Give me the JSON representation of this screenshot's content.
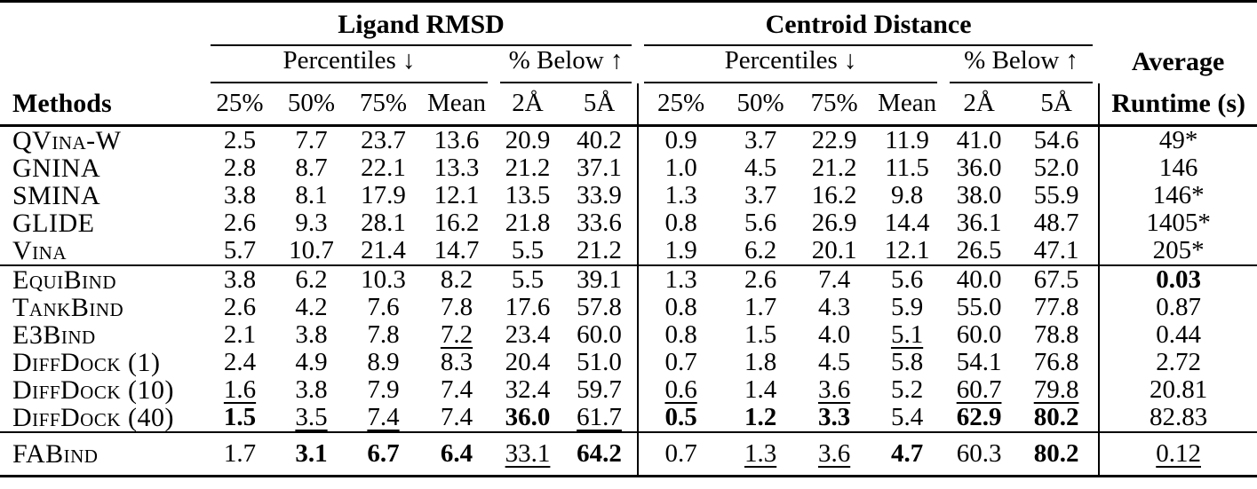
{
  "colors": {
    "text": "#000000",
    "background": "#ffffff",
    "rule": "#000000"
  },
  "header": {
    "methods": "Methods",
    "group_ligand": "Ligand RMSD",
    "group_centroid": "Centroid Distance",
    "percentiles": "Percentiles ↓",
    "below": "% Below ↑",
    "average": "Average",
    "runtime": "Runtime (s)",
    "cols": [
      "25%",
      "50%",
      "75%",
      "Mean",
      "2Å",
      "5Å"
    ]
  },
  "table": {
    "groups": [
      {
        "rows": [
          {
            "method": "QVina-W",
            "values": [
              {
                "v": "2.5",
                "s": "n"
              },
              {
                "v": "7.7",
                "s": "n"
              },
              {
                "v": "23.7",
                "s": "n"
              },
              {
                "v": "13.6",
                "s": "n"
              },
              {
                "v": "20.9",
                "s": "n"
              },
              {
                "v": "40.2",
                "s": "n"
              },
              {
                "v": "0.9",
                "s": "n"
              },
              {
                "v": "3.7",
                "s": "n"
              },
              {
                "v": "22.9",
                "s": "n"
              },
              {
                "v": "11.9",
                "s": "n"
              },
              {
                "v": "41.0",
                "s": "n"
              },
              {
                "v": "54.6",
                "s": "n"
              },
              {
                "v": "49*",
                "s": "n"
              }
            ]
          },
          {
            "method": "GNINA",
            "values": [
              {
                "v": "2.8",
                "s": "n"
              },
              {
                "v": "8.7",
                "s": "n"
              },
              {
                "v": "22.1",
                "s": "n"
              },
              {
                "v": "13.3",
                "s": "n"
              },
              {
                "v": "21.2",
                "s": "n"
              },
              {
                "v": "37.1",
                "s": "n"
              },
              {
                "v": "1.0",
                "s": "n"
              },
              {
                "v": "4.5",
                "s": "n"
              },
              {
                "v": "21.2",
                "s": "n"
              },
              {
                "v": "11.5",
                "s": "n"
              },
              {
                "v": "36.0",
                "s": "n"
              },
              {
                "v": "52.0",
                "s": "n"
              },
              {
                "v": "146",
                "s": "n"
              }
            ]
          },
          {
            "method": "SMINA",
            "values": [
              {
                "v": "3.8",
                "s": "n"
              },
              {
                "v": "8.1",
                "s": "n"
              },
              {
                "v": "17.9",
                "s": "n"
              },
              {
                "v": "12.1",
                "s": "n"
              },
              {
                "v": "13.5",
                "s": "n"
              },
              {
                "v": "33.9",
                "s": "n"
              },
              {
                "v": "1.3",
                "s": "n"
              },
              {
                "v": "3.7",
                "s": "n"
              },
              {
                "v": "16.2",
                "s": "n"
              },
              {
                "v": "9.8",
                "s": "n"
              },
              {
                "v": "38.0",
                "s": "n"
              },
              {
                "v": "55.9",
                "s": "n"
              },
              {
                "v": "146*",
                "s": "n"
              }
            ]
          },
          {
            "method": "GLIDE",
            "values": [
              {
                "v": "2.6",
                "s": "n"
              },
              {
                "v": "9.3",
                "s": "n"
              },
              {
                "v": "28.1",
                "s": "n"
              },
              {
                "v": "16.2",
                "s": "n"
              },
              {
                "v": "21.8",
                "s": "n"
              },
              {
                "v": "33.6",
                "s": "n"
              },
              {
                "v": "0.8",
                "s": "n"
              },
              {
                "v": "5.6",
                "s": "n"
              },
              {
                "v": "26.9",
                "s": "n"
              },
              {
                "v": "14.4",
                "s": "n"
              },
              {
                "v": "36.1",
                "s": "n"
              },
              {
                "v": "48.7",
                "s": "n"
              },
              {
                "v": "1405*",
                "s": "n"
              }
            ]
          },
          {
            "method": "Vina",
            "values": [
              {
                "v": "5.7",
                "s": "n"
              },
              {
                "v": "10.7",
                "s": "n"
              },
              {
                "v": "21.4",
                "s": "n"
              },
              {
                "v": "14.7",
                "s": "n"
              },
              {
                "v": "5.5",
                "s": "n"
              },
              {
                "v": "21.2",
                "s": "n"
              },
              {
                "v": "1.9",
                "s": "n"
              },
              {
                "v": "6.2",
                "s": "n"
              },
              {
                "v": "20.1",
                "s": "n"
              },
              {
                "v": "12.1",
                "s": "n"
              },
              {
                "v": "26.5",
                "s": "n"
              },
              {
                "v": "47.1",
                "s": "n"
              },
              {
                "v": "205*",
                "s": "n"
              }
            ]
          }
        ]
      },
      {
        "rows": [
          {
            "method": "EquiBind",
            "values": [
              {
                "v": "3.8",
                "s": "n"
              },
              {
                "v": "6.2",
                "s": "n"
              },
              {
                "v": "10.3",
                "s": "n"
              },
              {
                "v": "8.2",
                "s": "n"
              },
              {
                "v": "5.5",
                "s": "n"
              },
              {
                "v": "39.1",
                "s": "n"
              },
              {
                "v": "1.3",
                "s": "n"
              },
              {
                "v": "2.6",
                "s": "n"
              },
              {
                "v": "7.4",
                "s": "n"
              },
              {
                "v": "5.6",
                "s": "n"
              },
              {
                "v": "40.0",
                "s": "n"
              },
              {
                "v": "67.5",
                "s": "n"
              },
              {
                "v": "0.03",
                "s": "b"
              }
            ]
          },
          {
            "method": "TankBind",
            "values": [
              {
                "v": "2.6",
                "s": "n"
              },
              {
                "v": "4.2",
                "s": "n"
              },
              {
                "v": "7.6",
                "s": "n"
              },
              {
                "v": "7.8",
                "s": "n"
              },
              {
                "v": "17.6",
                "s": "n"
              },
              {
                "v": "57.8",
                "s": "n"
              },
              {
                "v": "0.8",
                "s": "n"
              },
              {
                "v": "1.7",
                "s": "n"
              },
              {
                "v": "4.3",
                "s": "n"
              },
              {
                "v": "5.9",
                "s": "n"
              },
              {
                "v": "55.0",
                "s": "n"
              },
              {
                "v": "77.8",
                "s": "n"
              },
              {
                "v": "0.87",
                "s": "n"
              }
            ]
          },
          {
            "method": "E3Bind",
            "values": [
              {
                "v": "2.1",
                "s": "n"
              },
              {
                "v": "3.8",
                "s": "n"
              },
              {
                "v": "7.8",
                "s": "n"
              },
              {
                "v": "7.2",
                "s": "u"
              },
              {
                "v": "23.4",
                "s": "n"
              },
              {
                "v": "60.0",
                "s": "n"
              },
              {
                "v": "0.8",
                "s": "n"
              },
              {
                "v": "1.5",
                "s": "n"
              },
              {
                "v": "4.0",
                "s": "n"
              },
              {
                "v": "5.1",
                "s": "u"
              },
              {
                "v": "60.0",
                "s": "n"
              },
              {
                "v": "78.8",
                "s": "n"
              },
              {
                "v": "0.44",
                "s": "n"
              }
            ]
          },
          {
            "method": "DiffDock (1)",
            "values": [
              {
                "v": "2.4",
                "s": "n"
              },
              {
                "v": "4.9",
                "s": "n"
              },
              {
                "v": "8.9",
                "s": "n"
              },
              {
                "v": "8.3",
                "s": "n"
              },
              {
                "v": "20.4",
                "s": "n"
              },
              {
                "v": "51.0",
                "s": "n"
              },
              {
                "v": "0.7",
                "s": "n"
              },
              {
                "v": "1.8",
                "s": "n"
              },
              {
                "v": "4.5",
                "s": "n"
              },
              {
                "v": "5.8",
                "s": "n"
              },
              {
                "v": "54.1",
                "s": "n"
              },
              {
                "v": "76.8",
                "s": "n"
              },
              {
                "v": "2.72",
                "s": "n"
              }
            ]
          },
          {
            "method": "DiffDock (10)",
            "values": [
              {
                "v": "1.6",
                "s": "u"
              },
              {
                "v": "3.8",
                "s": "n"
              },
              {
                "v": "7.9",
                "s": "n"
              },
              {
                "v": "7.4",
                "s": "n"
              },
              {
                "v": "32.4",
                "s": "n"
              },
              {
                "v": "59.7",
                "s": "n"
              },
              {
                "v": "0.6",
                "s": "u"
              },
              {
                "v": "1.4",
                "s": "n"
              },
              {
                "v": "3.6",
                "s": "u"
              },
              {
                "v": "5.2",
                "s": "n"
              },
              {
                "v": "60.7",
                "s": "u"
              },
              {
                "v": "79.8",
                "s": "u"
              },
              {
                "v": "20.81",
                "s": "n"
              }
            ]
          },
          {
            "method": "DiffDock (40)",
            "values": [
              {
                "v": "1.5",
                "s": "b"
              },
              {
                "v": "3.5",
                "s": "u"
              },
              {
                "v": "7.4",
                "s": "u"
              },
              {
                "v": "7.4",
                "s": "n"
              },
              {
                "v": "36.0",
                "s": "b"
              },
              {
                "v": "61.7",
                "s": "u"
              },
              {
                "v": "0.5",
                "s": "b"
              },
              {
                "v": "1.2",
                "s": "b"
              },
              {
                "v": "3.3",
                "s": "b"
              },
              {
                "v": "5.4",
                "s": "n"
              },
              {
                "v": "62.9",
                "s": "b"
              },
              {
                "v": "80.2",
                "s": "b"
              },
              {
                "v": "82.83",
                "s": "n"
              }
            ]
          }
        ]
      },
      {
        "rows": [
          {
            "method": "FABind",
            "values": [
              {
                "v": "1.7",
                "s": "n"
              },
              {
                "v": "3.1",
                "s": "b"
              },
              {
                "v": "6.7",
                "s": "b"
              },
              {
                "v": "6.4",
                "s": "b"
              },
              {
                "v": "33.1",
                "s": "u"
              },
              {
                "v": "64.2",
                "s": "b"
              },
              {
                "v": "0.7",
                "s": "n"
              },
              {
                "v": "1.3",
                "s": "u"
              },
              {
                "v": "3.6",
                "s": "u"
              },
              {
                "v": "4.7",
                "s": "b"
              },
              {
                "v": "60.3",
                "s": "n"
              },
              {
                "v": "80.2",
                "s": "b"
              },
              {
                "v": "0.12",
                "s": "u"
              }
            ]
          }
        ]
      }
    ]
  }
}
